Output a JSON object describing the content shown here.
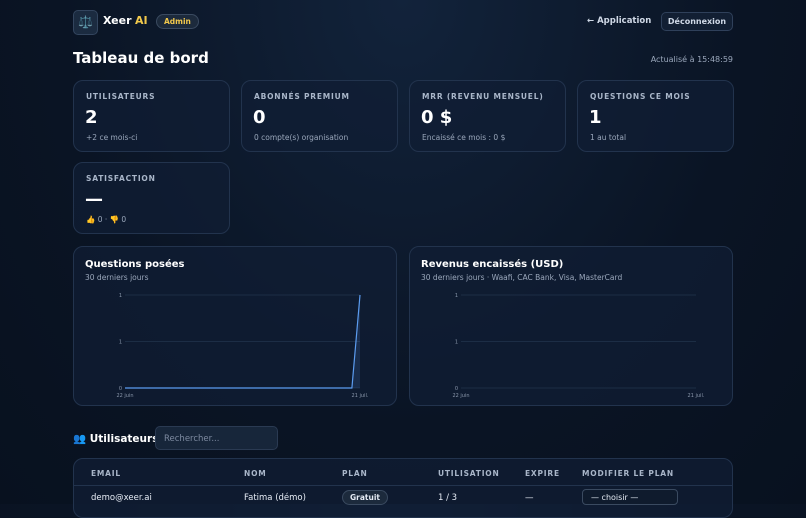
{
  "header": {
    "brand": "Xeer",
    "brand_accent": "AI",
    "badge": "Admin",
    "nav_link": "← Application",
    "logout": "Déconnexion"
  },
  "page": {
    "title": "Tableau de bord",
    "updated": "Actualisé à 15:48:59"
  },
  "stats": [
    {
      "label": "UTILISATEURS",
      "value": "2",
      "sub": "+2 ce mois-ci"
    },
    {
      "label": "ABONNÉS PREMIUM",
      "value": "0",
      "sub": "0 compte(s) organisation"
    },
    {
      "label": "MRR (REVENU MENSUEL)",
      "value": "0 $",
      "sub": "Encaissé ce mois : 0 $"
    },
    {
      "label": "QUESTIONS CE MOIS",
      "value": "1",
      "sub": "1 au total"
    },
    {
      "label": "SATISFACTION",
      "value": "—",
      "sub": "👍 0 · 👎 0"
    }
  ],
  "charts": [
    {
      "type": "line",
      "title": "Questions posées",
      "subtitle": "30 derniers jours",
      "categories": [
        "22 juin",
        null,
        null,
        null,
        null,
        null,
        null,
        null,
        null,
        null,
        null,
        null,
        null,
        null,
        null,
        null,
        null,
        null,
        null,
        null,
        null,
        null,
        null,
        null,
        null,
        null,
        null,
        null,
        null,
        "21 juil."
      ],
      "values": [
        0,
        0,
        0,
        0,
        0,
        0,
        0,
        0,
        0,
        0,
        0,
        0,
        0,
        0,
        0,
        0,
        0,
        0,
        0,
        0,
        0,
        0,
        0,
        0,
        0,
        0,
        0,
        0,
        0,
        1
      ],
      "color": "#5b9cf0",
      "ylim": [
        0,
        1
      ],
      "yticks": [
        0,
        {
          "value": 0.5,
          "label": "1"
        },
        1
      ],
      "grid": true
    },
    {
      "type": "line",
      "title": "Revenus encaissés (USD)",
      "subtitle": "30 derniers jours · Waafi, CAC Bank, Visa, MasterCard",
      "categories": [
        "22 juin",
        null,
        null,
        null,
        null,
        null,
        null,
        null,
        null,
        null,
        null,
        null,
        null,
        null,
        null,
        null,
        null,
        null,
        null,
        null,
        null,
        null,
        null,
        null,
        null,
        null,
        null,
        null,
        null,
        "21 juil."
      ],
      "ylim": [
        0,
        1
      ],
      "yticks": [
        0,
        {
          "value": 0.5,
          "label": "1"
        },
        1
      ],
      "grid": true
    }
  ],
  "users": {
    "title": "👥 Utilisateurs",
    "search_placeholder": "Rechercher...",
    "columns": [
      "EMAIL",
      "NOM",
      "PLAN",
      "UTILISATION",
      "EXPIRE",
      "MODIFIER LE PLAN"
    ],
    "rows": [
      [
        "demo@xeer.ai",
        "Fatima (démo)",
        "Gratuit",
        "1 / 3",
        "—",
        "— choisir —"
      ]
    ]
  }
}
